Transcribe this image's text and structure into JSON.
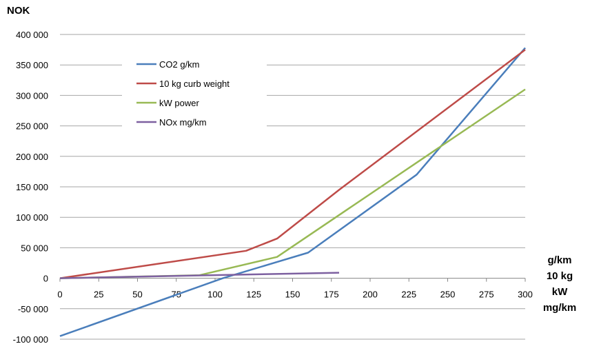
{
  "chart_data": {
    "type": "line",
    "title": "",
    "ylabel": "NOK",
    "xlabel_lines": [
      "g/km",
      "10 kg",
      "kW",
      "mg/km"
    ],
    "xlim": [
      0,
      300
    ],
    "ylim": [
      -100000,
      400000
    ],
    "x_ticks": [
      0,
      25,
      50,
      75,
      100,
      125,
      150,
      175,
      200,
      225,
      250,
      275,
      300
    ],
    "y_ticks": [
      -100000,
      -50000,
      0,
      50000,
      100000,
      150000,
      200000,
      250000,
      300000,
      350000,
      400000
    ],
    "y_tick_labels": [
      "-100 000",
      "-50 000",
      "0",
      "50 000",
      "100 000",
      "150 000",
      "200 000",
      "250 000",
      "300 000",
      "350 000",
      "400 000"
    ],
    "grid": "horizontal",
    "legend_position": "top-left",
    "series": [
      {
        "name": "CO2 g/km",
        "color": "#4a7ebb",
        "x": [
          0,
          105,
          160,
          230,
          300
        ],
        "y": [
          -95000,
          0,
          42000,
          170000,
          378000
        ]
      },
      {
        "name": "10 kg curb weight",
        "color": "#be4b48",
        "x": [
          0,
          120,
          140,
          180,
          300
        ],
        "y": [
          0,
          45000,
          65000,
          145000,
          375000
        ]
      },
      {
        "name": "kW power",
        "color": "#98b954",
        "x": [
          0,
          90,
          140,
          300
        ],
        "y": [
          0,
          5000,
          35000,
          310000
        ]
      },
      {
        "name": "NOx mg/km",
        "color": "#7d60a0",
        "x": [
          0,
          180
        ],
        "y": [
          0,
          9000
        ]
      }
    ]
  }
}
